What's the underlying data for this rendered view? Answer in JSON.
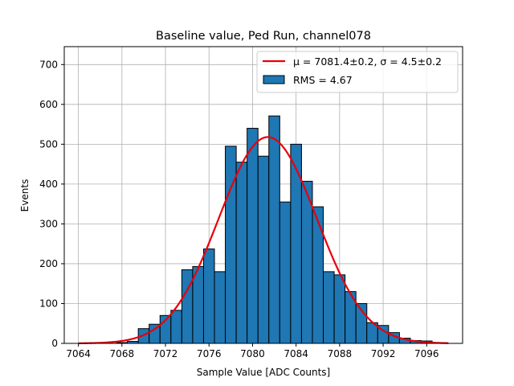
{
  "chart_data": {
    "type": "bar",
    "title": "Baseline value, Ped Run, channel078",
    "xlabel": "Sample Value [ADC Counts]",
    "ylabel": "Events",
    "xlim": [
      7062.7,
      7099.3
    ],
    "ylim": [
      0,
      745
    ],
    "grid": true,
    "x_ticks": [
      7064,
      7068,
      7072,
      7076,
      7080,
      7084,
      7088,
      7092,
      7096
    ],
    "y_ticks": [
      0,
      100,
      200,
      300,
      400,
      500,
      600,
      700
    ],
    "bin_width": 1,
    "bins": [
      {
        "x": 7068,
        "count": 2
      },
      {
        "x": 7069,
        "count": 5
      },
      {
        "x": 7070,
        "count": 37
      },
      {
        "x": 7071,
        "count": 48
      },
      {
        "x": 7072,
        "count": 70
      },
      {
        "x": 7073,
        "count": 83
      },
      {
        "x": 7074,
        "count": 185
      },
      {
        "x": 7075,
        "count": 193
      },
      {
        "x": 7076,
        "count": 237
      },
      {
        "x": 7077,
        "count": 180
      },
      {
        "x": 7078,
        "count": 495
      },
      {
        "x": 7079,
        "count": 455
      },
      {
        "x": 7080,
        "count": 540
      },
      {
        "x": 7081,
        "count": 470
      },
      {
        "x": 7082,
        "count": 571
      },
      {
        "x": 7083,
        "count": 355
      },
      {
        "x": 7084,
        "count": 500
      },
      {
        "x": 7085,
        "count": 407
      },
      {
        "x": 7086,
        "count": 343
      },
      {
        "x": 7087,
        "count": 180
      },
      {
        "x": 7088,
        "count": 172
      },
      {
        "x": 7089,
        "count": 130
      },
      {
        "x": 7090,
        "count": 100
      },
      {
        "x": 7091,
        "count": 52
      },
      {
        "x": 7092,
        "count": 45
      },
      {
        "x": 7093,
        "count": 27
      },
      {
        "x": 7094,
        "count": 13
      },
      {
        "x": 7095,
        "count": 7
      },
      {
        "x": 7096,
        "count": 6
      },
      {
        "x": 7097,
        "count": 1
      }
    ],
    "fit": {
      "name": "gaussian",
      "mu": 7081.4,
      "sigma": 4.5,
      "amplitude": 518,
      "x_range": [
        7064,
        7098
      ],
      "color": "#e8000b"
    },
    "bar_color": "#1f77b4",
    "legend": {
      "position": "top-right",
      "fit_label": "μ = 7081.4±0.2, σ = 4.5±0.2",
      "hist_label": "RMS = 4.67"
    }
  }
}
